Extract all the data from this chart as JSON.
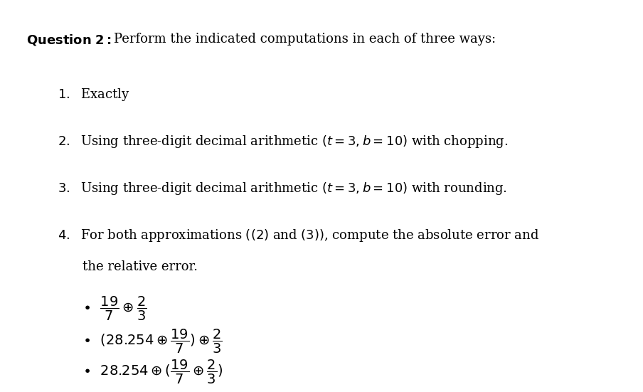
{
  "background_color": "#ffffff",
  "title_bold": "Question 2:",
  "title_rest": " Perform the indicated computations in each of three ways:",
  "items": [
    "1.\\enspace Exactly",
    "2.\\enspace Using three-digit decimal arithmetic $(t = 3, b = 10)$ with chopping.",
    "3.\\enspace Using three-digit decimal arithmetic $(t = 3, b = 10)$ with rounding.",
    "4.\\enspace For both approximations $((2)$ and $(3))$, compute the absolute error and"
  ],
  "item4_line2": "\\hspace{1.2em} the relative error.",
  "bullets": [
    "$\\dfrac{19}{7} \\oplus \\dfrac{2}{3}$",
    "$(28.254 \\oplus \\dfrac{19}{7}) \\oplus \\dfrac{2}{3}$",
    "$28.254 \\oplus (\\dfrac{19}{7} \\oplus \\dfrac{2}{3})$"
  ],
  "font_size_title": 13,
  "font_size_items": 13,
  "font_size_bullets": 13,
  "text_color": "#000000"
}
